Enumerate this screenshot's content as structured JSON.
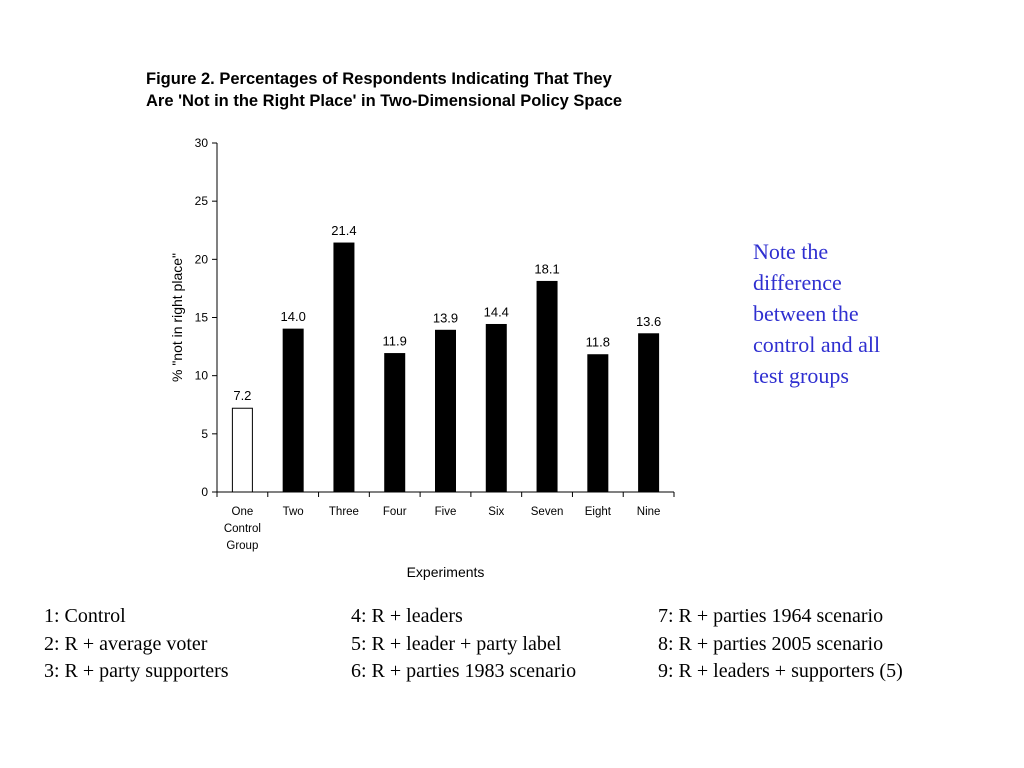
{
  "chart_data": {
    "type": "bar",
    "title_lines": [
      "Figure 2.  Percentages of Respondents Indicating That They",
      "Are 'Not in the Right Place' in Two-Dimensional Policy Space"
    ],
    "xlabel": "Experiments",
    "ylabel": "% \"not in right place\"",
    "ylim": [
      0,
      30
    ],
    "yticks": [
      0,
      5,
      10,
      15,
      20,
      25,
      30
    ],
    "categories": [
      "One Control Group",
      "Two",
      "Three",
      "Four",
      "Five",
      "Six",
      "Seven",
      "Eight",
      "Nine"
    ],
    "category_lines": [
      [
        "One",
        "Control",
        "Group"
      ],
      [
        "Two"
      ],
      [
        "Three"
      ],
      [
        "Four"
      ],
      [
        "Five"
      ],
      [
        "Six"
      ],
      [
        "Seven"
      ],
      [
        "Eight"
      ],
      [
        "Nine"
      ]
    ],
    "values": [
      7.2,
      14.0,
      21.4,
      11.9,
      13.9,
      14.4,
      18.1,
      11.8,
      13.6
    ],
    "value_labels": [
      "7.2",
      "14.0",
      "21.4",
      "11.9",
      "13.9",
      "14.4",
      "18.1",
      "11.8",
      "13.6"
    ],
    "bar_fill": [
      "#ffffff",
      "#000000",
      "#000000",
      "#000000",
      "#000000",
      "#000000",
      "#000000",
      "#000000",
      "#000000"
    ],
    "bar_stroke": "#000000",
    "grid": false
  },
  "note": {
    "lines": [
      "Note the",
      "difference",
      "between the",
      "control and all",
      "test groups"
    ],
    "color": "#2f2fd0"
  },
  "legend": {
    "columns": [
      [
        "1: Control",
        "2: R + average voter",
        "3: R + party supporters"
      ],
      [
        "4: R + leaders",
        "5: R + leader + party label",
        "6: R + parties 1983 scenario"
      ],
      [
        "7: R + parties 1964 scenario",
        "8: R + parties 2005 scenario",
        "9: R + leaders + supporters (5)"
      ]
    ]
  }
}
